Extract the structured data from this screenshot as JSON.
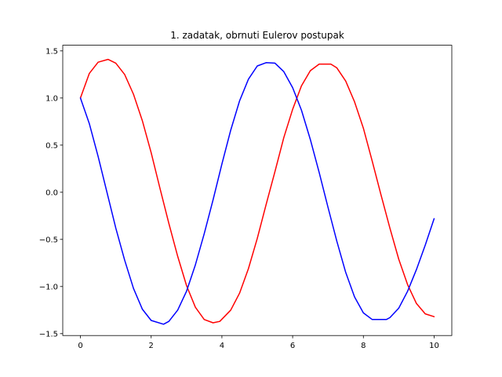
{
  "chart_data": {
    "type": "line",
    "title": "1. zadatak, obrnuti Eulerov postupak",
    "xlabel": "",
    "ylabel": "",
    "xlim": [
      -0.5,
      10.5
    ],
    "ylim": [
      -1.52,
      1.56
    ],
    "x_ticks": [
      0,
      2,
      4,
      6,
      8,
      10
    ],
    "x_tick_labels": [
      "0",
      "2",
      "4",
      "6",
      "8",
      "10"
    ],
    "y_ticks": [
      -1.5,
      -1.0,
      -0.5,
      0.0,
      0.5,
      1.0,
      1.5
    ],
    "y_tick_labels": [
      "−1.5",
      "−1.0",
      "−0.5",
      "0.0",
      "0.5",
      "1.0",
      "1.5"
    ],
    "grid": false,
    "series": [
      {
        "color": "#ff0000",
        "x": [
          0,
          0.25,
          0.5,
          0.78,
          1.0,
          1.25,
          1.5,
          1.75,
          2.0,
          2.25,
          2.5,
          2.75,
          3.0,
          3.25,
          3.5,
          3.75,
          3.94,
          4.25,
          4.5,
          4.75,
          5.0,
          5.25,
          5.5,
          5.75,
          6.0,
          6.25,
          6.5,
          6.75,
          7.08,
          7.25,
          7.5,
          7.75,
          8.0,
          8.25,
          8.5,
          8.75,
          9.0,
          9.25,
          9.5,
          9.75,
          10.0
        ],
        "y": [
          1.0,
          1.26,
          1.38,
          1.41,
          1.37,
          1.25,
          1.04,
          0.76,
          0.42,
          0.04,
          -0.33,
          -0.68,
          -0.99,
          -1.22,
          -1.35,
          -1.385,
          -1.37,
          -1.25,
          -1.07,
          -0.81,
          -0.49,
          -0.13,
          0.22,
          0.58,
          0.88,
          1.13,
          1.29,
          1.36,
          1.36,
          1.32,
          1.18,
          0.96,
          0.68,
          0.33,
          -0.03,
          -0.38,
          -0.71,
          -0.98,
          -1.18,
          -1.29,
          -1.32
        ]
      },
      {
        "color": "#0000ff",
        "x": [
          0,
          0.25,
          0.5,
          0.75,
          1.0,
          1.25,
          1.5,
          1.75,
          2.0,
          2.35,
          2.5,
          2.75,
          3.0,
          3.25,
          3.5,
          3.75,
          4.0,
          4.25,
          4.5,
          4.75,
          5.0,
          5.25,
          5.5,
          5.75,
          6.0,
          6.25,
          6.5,
          6.75,
          7.0,
          7.25,
          7.5,
          7.75,
          8.0,
          8.25,
          8.65,
          8.75,
          9.0,
          9.25,
          9.5,
          9.75,
          10.0
        ],
        "y": [
          1.0,
          0.73,
          0.38,
          0.0,
          -0.38,
          -0.72,
          -1.02,
          -1.24,
          -1.36,
          -1.4,
          -1.37,
          -1.25,
          -1.05,
          -0.77,
          -0.44,
          -0.08,
          0.3,
          0.66,
          0.97,
          1.2,
          1.34,
          1.375,
          1.37,
          1.28,
          1.11,
          0.87,
          0.56,
          0.21,
          -0.16,
          -0.52,
          -0.85,
          -1.11,
          -1.28,
          -1.35,
          -1.35,
          -1.33,
          -1.23,
          -1.05,
          -0.82,
          -0.56,
          -0.28
        ]
      }
    ]
  }
}
